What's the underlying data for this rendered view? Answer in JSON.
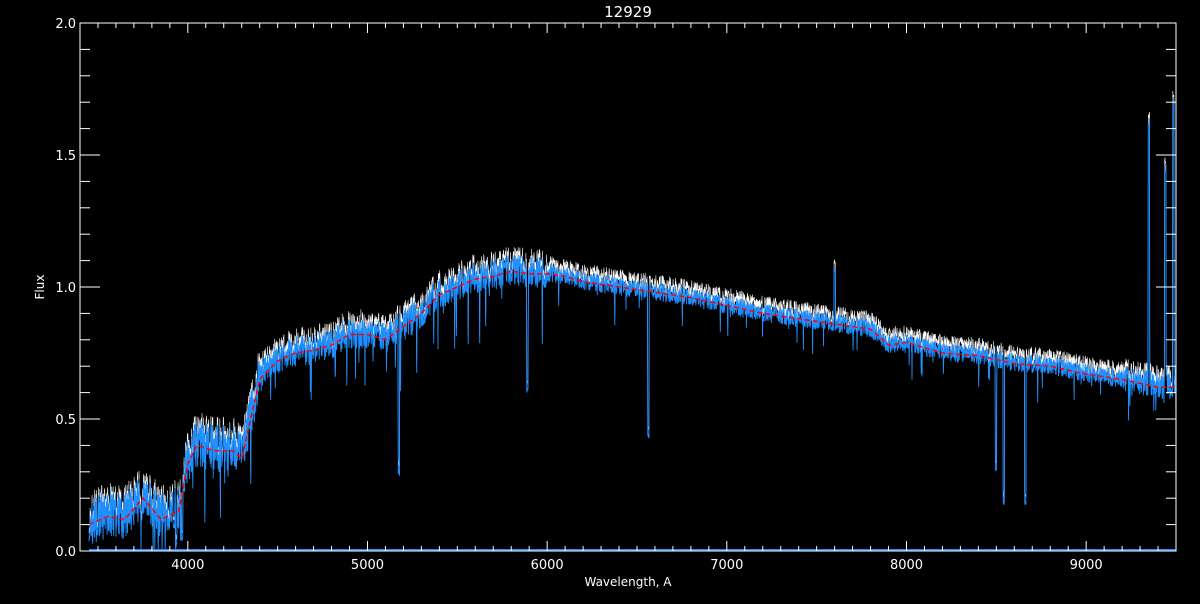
{
  "chart_data": {
    "type": "line",
    "title": "12929",
    "xlabel": "Wavelength, A",
    "ylabel": "Flux",
    "xlim": [
      3400,
      9500
    ],
    "ylim": [
      0.0,
      2.0
    ],
    "xticks": [
      4000,
      5000,
      6000,
      7000,
      8000,
      9000
    ],
    "xtick_labels": [
      "4000",
      "5000",
      "6000",
      "7000",
      "8000",
      "9000"
    ],
    "yticks": [
      0.0,
      0.5,
      1.0,
      1.5,
      2.0
    ],
    "ytick_labels": [
      "0.0",
      "0.5",
      "1.0",
      "1.5",
      "2.0"
    ],
    "grid": false,
    "colors": {
      "background": "#000000",
      "axes": "#ffffff",
      "spectrum": "#1e8fff",
      "spectrum_alt": "#ffffff",
      "model": "#ff0000"
    },
    "series": [
      {
        "role": "model (red dashed)",
        "x": [
          3450,
          3550,
          3650,
          3750,
          3850,
          3950,
          4000,
          4050,
          4150,
          4250,
          4300,
          4400,
          4500,
          4600,
          4700,
          4800,
          4900,
          5000,
          5100,
          5200,
          5300,
          5400,
          5500,
          5600,
          5700,
          5800,
          5900,
          6000,
          6100,
          6200,
          6400,
          6600,
          6800,
          7000,
          7200,
          7400,
          7600,
          7800,
          7900,
          8000,
          8200,
          8400,
          8600,
          8800,
          9000,
          9200,
          9400,
          9500
        ],
        "y": [
          0.1,
          0.13,
          0.12,
          0.2,
          0.12,
          0.15,
          0.33,
          0.4,
          0.38,
          0.38,
          0.35,
          0.65,
          0.72,
          0.75,
          0.76,
          0.78,
          0.82,
          0.82,
          0.8,
          0.85,
          0.9,
          0.97,
          1.0,
          1.03,
          1.04,
          1.06,
          1.05,
          1.05,
          1.04,
          1.02,
          1.0,
          0.98,
          0.96,
          0.93,
          0.9,
          0.88,
          0.86,
          0.84,
          0.78,
          0.79,
          0.75,
          0.74,
          0.71,
          0.7,
          0.67,
          0.65,
          0.62,
          0.62
        ]
      }
    ],
    "features": [
      {
        "x": 3934,
        "y": 0.02
      },
      {
        "x": 3968,
        "y": 0.05
      },
      {
        "x": 5175,
        "y": 0.3
      },
      {
        "x": 5890,
        "y": 0.6
      },
      {
        "x": 6563,
        "y": 0.43
      },
      {
        "x": 7600,
        "y": 1.07
      },
      {
        "x": 8498,
        "y": 0.3
      },
      {
        "x": 8542,
        "y": 0.19
      },
      {
        "x": 8662,
        "y": 0.18
      },
      {
        "x": 9350,
        "y": 1.62
      },
      {
        "x": 9440,
        "y": 1.45
      },
      {
        "x": 9485,
        "y": 1.7
      }
    ]
  }
}
